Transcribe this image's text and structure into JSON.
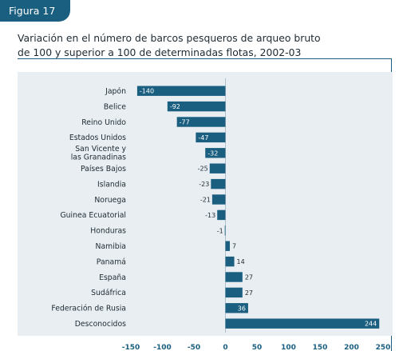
{
  "figure_label": "Figura 17",
  "title_line1": "Variación en el número de barcos pesqueros de arqueo bruto",
  "title_line2": "de 100 y superior a 100 de determinadas flotas, 2002-03",
  "chart_data": {
    "type": "bar",
    "orientation": "horizontal",
    "title": "Variación en el número de barcos pesqueros de arqueo bruto de 100 y superior a 100 de determinadas flotas, 2002-03",
    "categories": [
      [
        "Japón"
      ],
      [
        "Belice"
      ],
      [
        "Reino Unido"
      ],
      [
        "Estados Unidos"
      ],
      [
        "San Vicente y",
        "las Granadinas"
      ],
      [
        "Países Bajos"
      ],
      [
        "Islandia"
      ],
      [
        "Noruega"
      ],
      [
        "Guinea Ecuatorial"
      ],
      [
        "Honduras"
      ],
      [
        "Namibia"
      ],
      [
        "Panamá"
      ],
      [
        "España"
      ],
      [
        "Sudáfrica"
      ],
      [
        "Federación de Rusia"
      ],
      [
        "Desconocidos"
      ]
    ],
    "values": [
      -140,
      -92,
      -77,
      -47,
      -32,
      -25,
      -23,
      -21,
      -13,
      -1,
      7,
      14,
      27,
      27,
      36,
      244
    ],
    "xlim": [
      -150,
      250
    ],
    "xticks": [
      -150,
      -100,
      -50,
      0,
      50,
      100,
      150,
      200,
      250
    ],
    "grid": false,
    "colors": {
      "bar": "#1a5e80",
      "panel": "#e8eef2",
      "label_inside": "#ffffff",
      "label_outside": "#1d2a33"
    }
  }
}
